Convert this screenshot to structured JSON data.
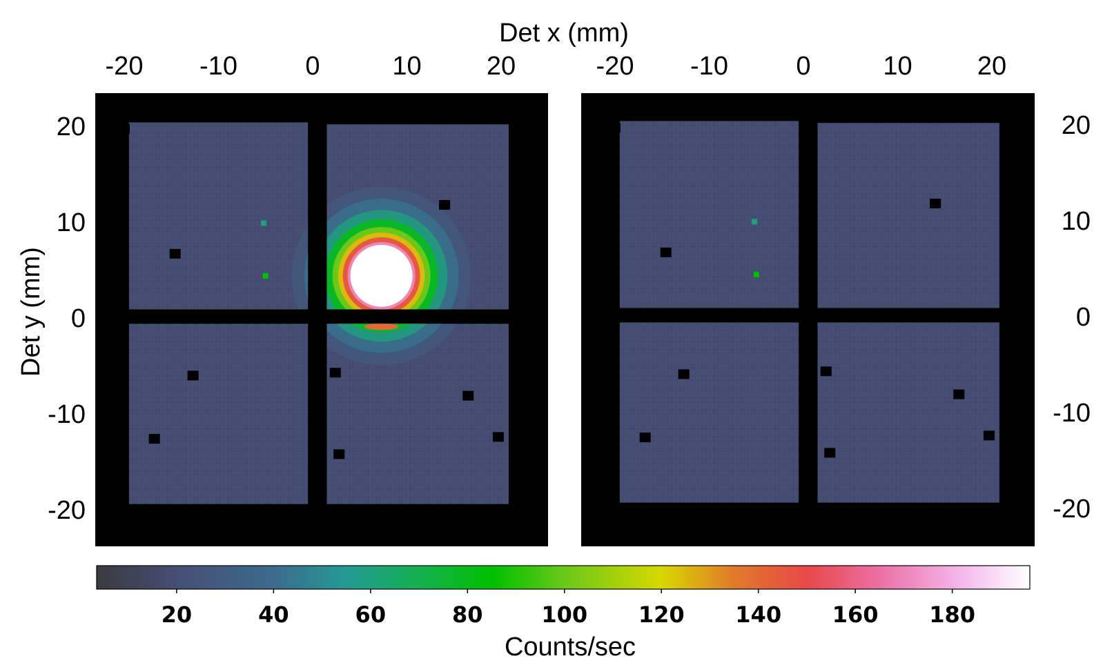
{
  "chart_data": {
    "type": "heatmap",
    "x_axis": {
      "label": "Det x (mm)",
      "ticks": [
        "-20",
        "-10",
        "0",
        "10",
        "20"
      ],
      "tick_values": [
        -20,
        -10,
        0,
        10,
        20
      ],
      "position": "top",
      "range": [
        -23,
        23
      ]
    },
    "y_axis": {
      "label": "Det y (mm)",
      "ticks": [
        "20",
        "10",
        "0",
        "-10",
        "-20"
      ],
      "tick_values": [
        20,
        10,
        0,
        -10,
        -20
      ],
      "range": [
        -23,
        23
      ]
    },
    "panels": [
      {
        "quadrants": [
          {
            "x": [
              -19.5,
              -0.5
            ],
            "y": [
              0.9,
              20.4
            ]
          },
          {
            "x": [
              1.5,
              20.8
            ],
            "y": [
              0.9,
              20.2
            ]
          },
          {
            "x": [
              -19.5,
              -0.5
            ],
            "y": [
              -19.4,
              -0.6
            ]
          },
          {
            "x": [
              1.5,
              20.8
            ],
            "y": [
              -19.4,
              -0.6
            ]
          }
        ],
        "background_level": 20,
        "source": {
          "center_x": 7.3,
          "center_y": 4.4,
          "core_radius_mm": 3.6,
          "peak_level": 196
        },
        "dead_pixels": [
          {
            "x": -14.6,
            "y": 6.7
          },
          {
            "x": 14.0,
            "y": 11.8
          },
          {
            "x": -12.7,
            "y": -6.0
          },
          {
            "x": 2.4,
            "y": -5.7
          },
          {
            "x": 16.5,
            "y": -8.1
          },
          {
            "x": -16.8,
            "y": -12.6
          },
          {
            "x": 2.8,
            "y": -14.2
          },
          {
            "x": 19.7,
            "y": -12.4
          },
          {
            "x": -20.0,
            "y": 19.7
          }
        ],
        "hot_pixels": [
          {
            "x": -5.2,
            "y": 9.9,
            "level": 60
          },
          {
            "x": -5.0,
            "y": 4.4,
            "level": 85
          }
        ]
      },
      {
        "quadrants": [
          {
            "x": [
              -19.5,
              -0.5
            ],
            "y": [
              0.9,
              20.4
            ]
          },
          {
            "x": [
              1.5,
              20.8
            ],
            "y": [
              0.9,
              20.2
            ]
          },
          {
            "x": [
              -19.5,
              -0.5
            ],
            "y": [
              -19.4,
              -0.6
            ]
          },
          {
            "x": [
              1.5,
              20.8
            ],
            "y": [
              -19.4,
              -0.6
            ]
          }
        ],
        "background_level": 20,
        "source": null,
        "dead_pixels": [
          {
            "x": -14.6,
            "y": 6.7
          },
          {
            "x": 14.0,
            "y": 11.8
          },
          {
            "x": -12.7,
            "y": -6.0
          },
          {
            "x": 2.4,
            "y": -5.7
          },
          {
            "x": 16.5,
            "y": -8.1
          },
          {
            "x": -16.8,
            "y": -12.6
          },
          {
            "x": 2.8,
            "y": -14.2
          },
          {
            "x": 19.7,
            "y": -12.4
          },
          {
            "x": -20.0,
            "y": 19.7
          }
        ],
        "hot_pixels": [
          {
            "x": -5.2,
            "y": 9.9,
            "level": 60
          },
          {
            "x": -5.0,
            "y": 4.4,
            "level": 85
          }
        ]
      }
    ],
    "colorbar": {
      "label": "Counts/sec",
      "ticks": [
        "20",
        "40",
        "60",
        "80",
        "100",
        "120",
        "140",
        "160",
        "180"
      ],
      "tick_values": [
        20,
        40,
        60,
        80,
        100,
        120,
        140,
        160,
        180
      ],
      "range": [
        3.5,
        196
      ],
      "colors": [
        {
          "at": 3.5,
          "color": "#3a3a3e"
        },
        {
          "at": 20,
          "color": "#464e74"
        },
        {
          "at": 40,
          "color": "#3c6a8e"
        },
        {
          "at": 55,
          "color": "#249a94"
        },
        {
          "at": 70,
          "color": "#14b050"
        },
        {
          "at": 85,
          "color": "#00c000"
        },
        {
          "at": 100,
          "color": "#6ac818"
        },
        {
          "at": 120,
          "color": "#d8d800"
        },
        {
          "at": 135,
          "color": "#e07a2a"
        },
        {
          "at": 150,
          "color": "#e84848"
        },
        {
          "at": 165,
          "color": "#ec70a4"
        },
        {
          "at": 182,
          "color": "#f4b8ee"
        },
        {
          "at": 196,
          "color": "#ffffff"
        }
      ]
    }
  }
}
